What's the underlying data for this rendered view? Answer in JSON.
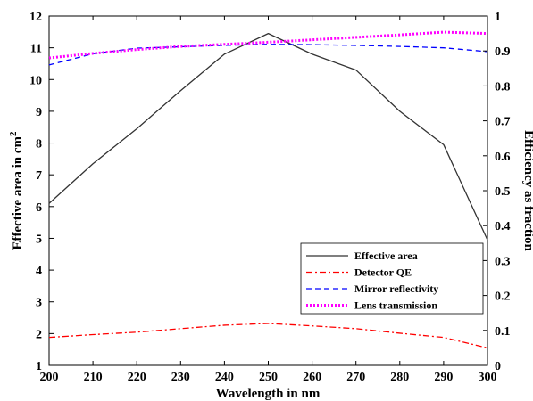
{
  "chart_data": {
    "type": "line",
    "title": "",
    "xlabel": "Wavelength in nm",
    "ylabel_left": "Effective area in cm",
    "ylabel_left_superscript": "2",
    "ylabel_right": "Efficiency as fraction",
    "xlim": [
      200,
      300
    ],
    "ylim_left": [
      1,
      12
    ],
    "ylim_right": [
      0,
      1
    ],
    "x_ticks": [
      "200",
      "210",
      "220",
      "230",
      "240",
      "250",
      "260",
      "270",
      "280",
      "290",
      "300"
    ],
    "y_left_ticks": [
      "1",
      "2",
      "3",
      "4",
      "5",
      "6",
      "7",
      "8",
      "9",
      "10",
      "11",
      "12"
    ],
    "y_right_ticks": [
      "0",
      "0.1",
      "0.2",
      "0.3",
      "0.4",
      "0.5",
      "0.6",
      "0.7",
      "0.8",
      "0.9",
      "1"
    ],
    "grid": false,
    "legend_position": "bottom-right",
    "x": [
      200,
      210,
      220,
      230,
      240,
      250,
      260,
      270,
      280,
      290,
      300
    ],
    "series": [
      {
        "name": "Effective area",
        "axis": "left",
        "color": "#333333",
        "style": "solid",
        "values": [
          6.1,
          7.35,
          8.45,
          9.65,
          10.8,
          11.45,
          10.8,
          10.3,
          9.0,
          7.95,
          4.95
        ]
      },
      {
        "name": "Detector QE",
        "axis": "right",
        "color": "#ff0000",
        "style": "dashdot",
        "values": [
          0.08,
          0.088,
          0.095,
          0.105,
          0.115,
          0.12,
          0.113,
          0.105,
          0.092,
          0.08,
          0.05
        ]
      },
      {
        "name": "Mirror reflectivity",
        "axis": "right",
        "color": "#0000ff",
        "style": "dashed",
        "values": [
          0.86,
          0.892,
          0.908,
          0.912,
          0.916,
          0.919,
          0.918,
          0.916,
          0.913,
          0.909,
          0.898
        ]
      },
      {
        "name": "Lens transmission",
        "axis": "right",
        "color": "#ff00ff",
        "style": "dotted",
        "values": [
          0.88,
          0.893,
          0.904,
          0.913,
          0.919,
          0.925,
          0.932,
          0.939,
          0.946,
          0.954,
          0.95
        ]
      }
    ]
  }
}
